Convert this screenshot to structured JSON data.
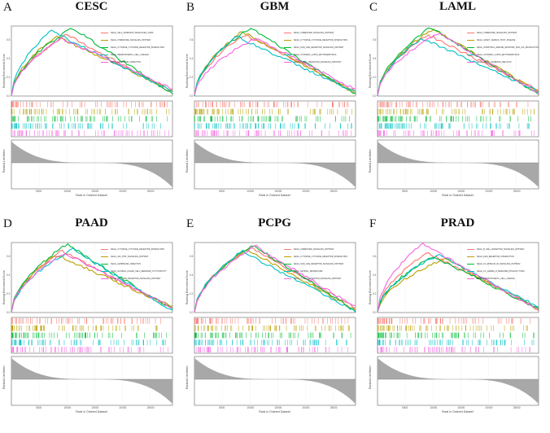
{
  "chart_data": [
    {
      "type": "line",
      "panel_letter": "A",
      "title": "CESC",
      "ylabel": "Running Enrichment Score",
      "ylabel2": "Ranked List Metric",
      "xlabel": "Rank in Ordered Dataset",
      "x_ticks": [
        "5000",
        "10000",
        "15000",
        "20000",
        "25000"
      ],
      "y_ticks": [
        "0.6",
        "0.4",
        "0.2",
        "0.0"
      ],
      "xlim": [
        0,
        29000
      ],
      "ylim": [
        0,
        0.75
      ],
      "legend_position": "top-right",
      "series": [
        {
          "name": "KEGG_CELL_ADHESION_MOLECULES_CAMS",
          "color": "#f8766d",
          "peak_x": 10000,
          "peak_y": 0.66,
          "end_y": 0.04
        },
        {
          "name": "KEGG_CHEMOKINE_SIGNALING_PATHWAY",
          "color": "#b79f00",
          "peak_x": 8000,
          "peak_y": 0.64,
          "end_y": 0.06
        },
        {
          "name": "KEGG_CYTOKINE_CYTOKINE_RECEPTOR_INTERACTION",
          "color": "#00ba38",
          "peak_x": 11000,
          "peak_y": 0.73,
          "end_y": 0.02
        },
        {
          "name": "KEGG_HEMATOPOIETIC_CELL_LINEAGE",
          "color": "#00bfc4",
          "peak_x": 7000,
          "peak_y": 0.7,
          "end_y": 0.05
        },
        {
          "name": "KEGG_LEISHMANIA_INFECTION",
          "color": "#f564e3",
          "peak_x": 9000,
          "peak_y": 0.62,
          "end_y": 0.08
        }
      ]
    },
    {
      "type": "line",
      "panel_letter": "B",
      "title": "GBM",
      "ylabel": "Running Enrichment Score",
      "ylabel2": "Ranked List Metric",
      "xlabel": "Rank in Ordered Dataset",
      "x_ticks": [
        "5000",
        "10000",
        "15000",
        "20000",
        "25000"
      ],
      "y_ticks": [
        "0.6",
        "0.4",
        "0.2",
        "0.0"
      ],
      "xlim": [
        0,
        29000
      ],
      "ylim": [
        0,
        0.75
      ],
      "legend_position": "top-right",
      "series": [
        {
          "name": "KEGG_CHEMOKINE_SIGNALING_PATHWAY",
          "color": "#f8766d",
          "peak_x": 9000,
          "peak_y": 0.66,
          "end_y": 0.05
        },
        {
          "name": "KEGG_CYTOKINE_CYTOKINE_RECEPTOR_INTERACTION",
          "color": "#b79f00",
          "peak_x": 8500,
          "peak_y": 0.69,
          "end_y": 0.03
        },
        {
          "name": "KEGG_NOD_LIKE_RECEPTOR_SIGNALING_PATHWAY",
          "color": "#00ba38",
          "peak_x": 10000,
          "peak_y": 0.73,
          "end_y": 0.02
        },
        {
          "name": "KEGG_SYSTEMIC_LUPUS_ERYTHEMATOSUS",
          "color": "#00bfc4",
          "peak_x": 7500,
          "peak_y": 0.64,
          "end_y": 0.04
        },
        {
          "name": "KEGG_T_CELL_RECEPTOR_SIGNALING_PATHWAY",
          "color": "#f564e3",
          "peak_x": 11000,
          "peak_y": 0.62,
          "end_y": 0.07
        }
      ]
    },
    {
      "type": "line",
      "panel_letter": "C",
      "title": "LAML",
      "ylabel": "Running Enrichment Score",
      "ylabel2": "Ranked List Metric",
      "xlabel": "Rank in Ordered Dataset",
      "x_ticks": [
        "5000",
        "10000",
        "15000",
        "20000",
        "25000"
      ],
      "y_ticks": [
        "0.6",
        "0.4",
        "0.2",
        "0.0"
      ],
      "xlim": [
        0,
        29000
      ],
      "ylim": [
        0,
        0.75
      ],
      "legend_position": "top-right",
      "series": [
        {
          "name": "KEGG_CHEMOKINE_SIGNALING_PATHWAY",
          "color": "#f8766d",
          "peak_x": 9000,
          "peak_y": 0.66,
          "end_y": 0.06
        },
        {
          "name": "KEGG_GRAFT_VERSUS_HOST_DISEASE",
          "color": "#b79f00",
          "peak_x": 10000,
          "peak_y": 0.72,
          "end_y": 0.04
        },
        {
          "name": "KEGG_INTESTINAL_IMMUNE_NETWORK_FOR_IGA_PRODUCTION",
          "color": "#00ba38",
          "peak_x": 9500,
          "peak_y": 0.74,
          "end_y": 0.02
        },
        {
          "name": "KEGG_SYSTEMIC_LUPUS_ERYTHEMATOSUS",
          "color": "#00bfc4",
          "peak_x": 8000,
          "peak_y": 0.62,
          "end_y": 0.05
        },
        {
          "name": "KEGG_TYPE_I_DIABETES_MELLITUS",
          "color": "#f564e3",
          "peak_x": 11000,
          "peak_y": 0.68,
          "end_y": 0.03
        }
      ]
    },
    {
      "type": "line",
      "panel_letter": "D",
      "title": "PAAD",
      "ylabel": "Running Enrichment Score",
      "ylabel2": "Ranked List Metric",
      "xlabel": "Rank in Ordered Dataset",
      "x_ticks": [
        "5000",
        "10000",
        "15000",
        "20000",
        "25000"
      ],
      "y_ticks": [
        "0.6",
        "0.4",
        "0.2",
        "0.0"
      ],
      "xlim": [
        0,
        29000
      ],
      "ylim": [
        0,
        0.75
      ],
      "legend_position": "top-right",
      "series": [
        {
          "name": "KEGG_CYTOKINE_CYTOKINE_RECEPTOR_INTERACTION",
          "color": "#f8766d",
          "peak_x": 9000,
          "peak_y": 0.66,
          "end_y": 0.04
        },
        {
          "name": "KEGG_JAK_STAT_SIGNALING_PATHWAY",
          "color": "#b79f00",
          "peak_x": 8000,
          "peak_y": 0.62,
          "end_y": 0.06
        },
        {
          "name": "KEGG_LEISHMANIA_INFECTION",
          "color": "#00ba38",
          "peak_x": 10000,
          "peak_y": 0.73,
          "end_y": 0.03
        },
        {
          "name": "KEGG_NATURAL_KILLER_CELL_MEDIATED_CYTOTOXICITY",
          "color": "#00bfc4",
          "peak_x": 11000,
          "peak_y": 0.68,
          "end_y": 0.02
        },
        {
          "name": "KEGG_NOD_LIKE_RECEPTOR_SIGNALING_PATHWAY",
          "color": "#f564e3",
          "peak_x": 9500,
          "peak_y": 0.64,
          "end_y": 0.05
        }
      ]
    },
    {
      "type": "line",
      "panel_letter": "E",
      "title": "PCPG",
      "ylabel": "Running Enrichment Score",
      "ylabel2": "Ranked List Metric",
      "xlabel": "Rank in Ordered Dataset",
      "x_ticks": [
        "5000",
        "10000",
        "15000",
        "20000",
        "25000"
      ],
      "y_ticks": [
        "0.6",
        "0.4",
        "0.2",
        "0.0"
      ],
      "xlim": [
        0,
        29000
      ],
      "ylim": [
        0,
        0.75
      ],
      "legend_position": "top-right",
      "series": [
        {
          "name": "KEGG_CHEMOKINE_SIGNALING_PATHWAY",
          "color": "#f8766d",
          "peak_x": 10000,
          "peak_y": 0.7,
          "end_y": 0.05
        },
        {
          "name": "KEGG_CYTOKINE_CYTOKINE_RECEPTOR_INTERACTION",
          "color": "#b79f00",
          "peak_x": 9500,
          "peak_y": 0.68,
          "end_y": 0.03
        },
        {
          "name": "KEGG_NOD_LIKE_RECEPTOR_SIGNALING_PATHWAY",
          "color": "#00ba38",
          "peak_x": 10500,
          "peak_y": 0.72,
          "end_y": 0.02
        },
        {
          "name": "KEGG_RETINOL_METABOLISM",
          "color": "#00bfc4",
          "peak_x": 8500,
          "peak_y": 0.66,
          "end_y": 0.01
        },
        {
          "name": "KEGG_T_CELL_RECEPTOR_SIGNALING_PATHWAY",
          "color": "#f564e3",
          "peak_x": 11000,
          "peak_y": 0.71,
          "end_y": 0.06
        }
      ]
    },
    {
      "type": "line",
      "panel_letter": "F",
      "title": "PRAD",
      "ylabel": "Running Enrichment Score",
      "ylabel2": "Ranked List Metric",
      "xlabel": "Rank in Ordered Dataset",
      "x_ticks": [
        "5000",
        "10000",
        "15000",
        "20000",
        "25000"
      ],
      "y_ticks": [
        "0.6",
        "0.4",
        "0.2",
        "0.0"
      ],
      "xlim": [
        0,
        29000
      ],
      "ylim": [
        0,
        0.75
      ],
      "legend_position": "top-right",
      "series": [
        {
          "name": "KEGG_B_CELL_RECEPTOR_SIGNALING_PATHWAY",
          "color": "#f8766d",
          "peak_x": 9000,
          "peak_y": 0.64,
          "end_y": 0.05
        },
        {
          "name": "KEGG_ECM_RECEPTOR_INTERACTION",
          "color": "#b79f00",
          "peak_x": 12000,
          "peak_y": 0.58,
          "end_y": 0.03
        },
        {
          "name": "KEGG_FC_EPSILON_RI_SIGNALING_PATHWAY",
          "color": "#00ba38",
          "peak_x": 10000,
          "peak_y": 0.6,
          "end_y": 0.04
        },
        {
          "name": "KEGG_FC_GAMMA_R_MEDIATED_PHAGOCYTOSIS",
          "color": "#00bfc4",
          "peak_x": 11000,
          "peak_y": 0.62,
          "end_y": 0.06
        },
        {
          "name": "KEGG_HEMATOPOIETIC_CELL_LINEAGE",
          "color": "#f564e3",
          "peak_x": 8000,
          "peak_y": 0.74,
          "end_y": 0.02
        }
      ]
    }
  ]
}
